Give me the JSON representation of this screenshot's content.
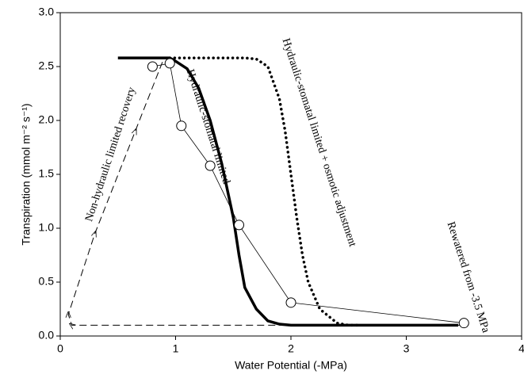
{
  "chart_data": {
    "type": "line",
    "xlabel": "Water Potential (-MPa)",
    "ylabel": "Transpiration (mmol m⁻² s⁻¹)",
    "xlim": [
      0,
      4
    ],
    "ylim": [
      0,
      3
    ],
    "xticks": [
      0,
      1,
      2,
      3,
      4
    ],
    "yticks": [
      {
        "value": 0,
        "label": "0.0"
      },
      0.5,
      {
        "value": 1,
        "label": "1.0"
      },
      1.5,
      {
        "value": 2,
        "label": "2.0"
      },
      2.5,
      {
        "value": 3,
        "label": "3.0"
      }
    ],
    "series": [
      {
        "name": "Hydraulic-stomatal limited",
        "style": "solid",
        "color": "#000000",
        "x": [
          0.5,
          0.95,
          1.0,
          1.1,
          1.2,
          1.3,
          1.4,
          1.5,
          1.55,
          1.6,
          1.7,
          1.8,
          1.9,
          2.0,
          3.45
        ],
        "values": [
          2.58,
          2.58,
          2.55,
          2.48,
          2.3,
          2.0,
          1.6,
          1.1,
          0.75,
          0.45,
          0.25,
          0.14,
          0.11,
          0.1,
          0.1
        ]
      },
      {
        "name": "Hydraulic-stomatal limited + osmotic adjustment",
        "style": "dotted",
        "color": "#000000",
        "x": [
          0.95,
          1.6,
          1.7,
          1.8,
          1.9,
          1.95,
          2.0,
          2.05,
          2.1,
          2.15,
          2.25,
          2.4,
          2.5,
          2.6
        ],
        "values": [
          2.58,
          2.58,
          2.57,
          2.5,
          2.2,
          1.9,
          1.5,
          1.1,
          0.75,
          0.5,
          0.25,
          0.12,
          0.1,
          0.1
        ]
      },
      {
        "name": "Non-hydraulic limited recovery",
        "style": "dashed",
        "color": "#000000",
        "x": [
          3.5,
          0.1,
          0.07,
          0.3,
          0.65,
          0.9
        ],
        "values": [
          0.1,
          0.1,
          0.2,
          0.95,
          1.9,
          2.58
        ]
      },
      {
        "name": "Rewatered from -3.5 MPa",
        "style": "circles",
        "color": "#000000",
        "x": [
          3.5,
          2.0,
          1.55,
          1.3,
          1.05,
          0.95,
          0.8
        ],
        "values": [
          0.12,
          0.31,
          1.03,
          1.58,
          1.95,
          2.53,
          2.5
        ]
      }
    ]
  }
}
